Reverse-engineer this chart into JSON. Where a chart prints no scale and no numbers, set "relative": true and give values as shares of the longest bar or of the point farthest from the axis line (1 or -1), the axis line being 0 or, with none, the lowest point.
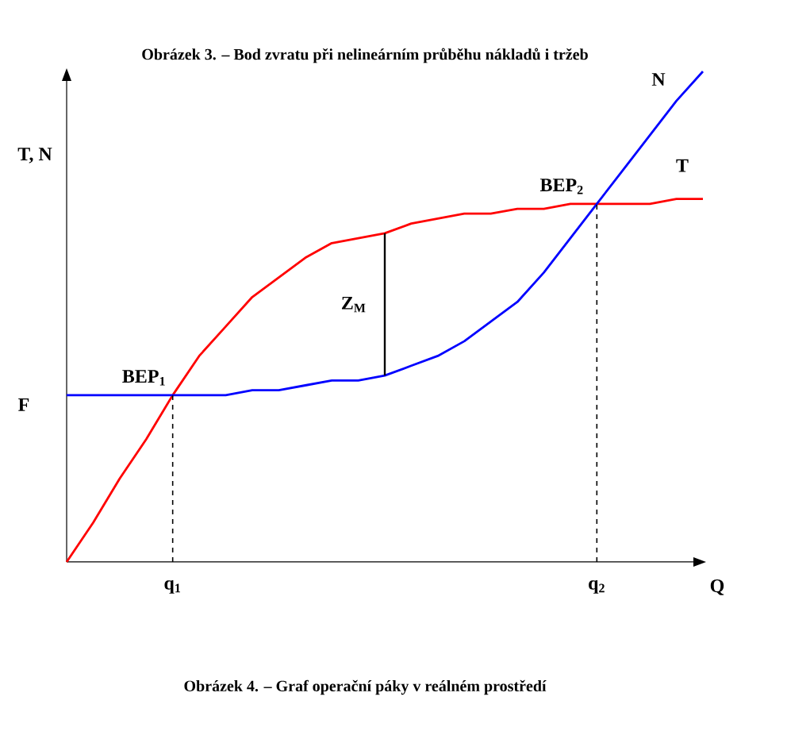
{
  "chart_data": {
    "type": "line",
    "title": "Obrázek 3. – Bod zvratu při nelineárním průběhu nákladů i tržeb",
    "xlabel": "Q",
    "ylabel": "T, N",
    "relative": true,
    "categories": [
      null,
      null,
      null,
      null,
      "q$_{1}$",
      null,
      null,
      null,
      null,
      null,
      null,
      null,
      null,
      null,
      null,
      null,
      null,
      null,
      null,
      null,
      "q$_{2}$",
      null,
      null,
      null,
      null
    ],
    "series": [
      {
        "name": "T",
        "color": "#ff0000",
        "values": [
          0,
          0.08,
          0.17,
          0.25,
          0.34,
          0.42,
          0.48,
          0.54,
          0.58,
          0.62,
          0.65,
          0.66,
          0.67,
          0.69,
          0.7,
          0.71,
          0.71,
          0.72,
          0.72,
          0.73,
          0.73,
          0.73,
          0.73,
          0.74,
          0.74
        ]
      },
      {
        "name": "N",
        "color": "#0000ff",
        "values": [
          0.34,
          0.34,
          0.34,
          0.34,
          0.34,
          0.34,
          0.34,
          0.35,
          0.35,
          0.36,
          0.37,
          0.37,
          0.38,
          0.4,
          0.42,
          0.45,
          0.49,
          0.53,
          0.59,
          0.66,
          0.73,
          0.8,
          0.87,
          0.94,
          1
        ]
      }
    ],
    "ref_lines": [
      {
        "axis": "x",
        "value": "q$_{1}$",
        "line_style": "dashed",
        "color": "#000000"
      },
      {
        "axis": "x",
        "value": "q$_{2}$",
        "line_style": "dashed",
        "color": "#000000"
      }
    ],
    "annotations": [
      "BEP$_{1}$",
      "BEP$_{2}$",
      "Z$_{M}$",
      "F",
      "Obrázek 4. – Graf operační páky v reálném prostředí"
    ],
    "marker": "none",
    "line_style": "solid"
  }
}
